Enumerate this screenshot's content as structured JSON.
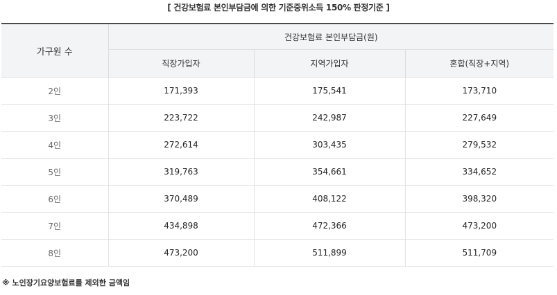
{
  "caption": "[ 건강보험료 본인부담금에 의한 기준중위소득 150% 판정기준 ]",
  "header": {
    "household_label": "가구원 수",
    "group_label": "건강보험료 본인부담금(원)",
    "columns": [
      "직장가입자",
      "지역가입자",
      "혼합(직장+지역)"
    ]
  },
  "rows": [
    {
      "size": "2인",
      "values": [
        "171,393",
        "175,541",
        "173,710"
      ]
    },
    {
      "size": "3인",
      "values": [
        "223,722",
        "242,987",
        "227,649"
      ]
    },
    {
      "size": "4인",
      "values": [
        "272,614",
        "303,435",
        "279,532"
      ]
    },
    {
      "size": "5인",
      "values": [
        "319,763",
        "354,661",
        "334,652"
      ]
    },
    {
      "size": "6인",
      "values": [
        "370,489",
        "408,122",
        "398,320"
      ]
    },
    {
      "size": "7인",
      "values": [
        "434,898",
        "472,366",
        "473,200"
      ]
    },
    {
      "size": "8인",
      "values": [
        "473,200",
        "511,899",
        "511,709"
      ]
    }
  ],
  "note": "※ 노인장기요양보험료를 제외한 금액임"
}
